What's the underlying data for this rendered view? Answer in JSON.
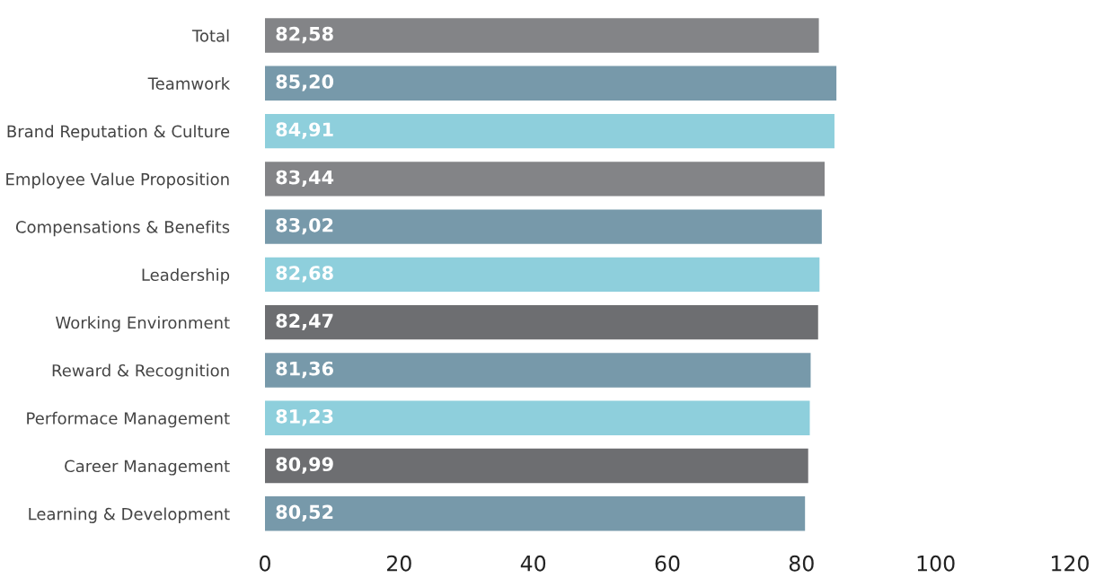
{
  "chart_data": {
    "type": "bar",
    "orientation": "horizontal",
    "categories": [
      "Total",
      "Teamwork",
      "Brand Reputation & Culture",
      "Employee Value Proposition",
      "Compensations & Benefits",
      "Leadership",
      "Working Environment",
      "Reward & Recognition",
      "Performace Management",
      "Career Management",
      "Learning & Development"
    ],
    "values": [
      82.58,
      85.2,
      84.91,
      83.44,
      83.02,
      82.68,
      82.47,
      81.36,
      81.23,
      80.99,
      80.52
    ],
    "value_labels": [
      "82,58",
      "85,20",
      "84,91",
      "83,44",
      "83,02",
      "82,68",
      "82,47",
      "81,36",
      "81,23",
      "80,99",
      "80,52"
    ],
    "colors": [
      "#838487",
      "#7799aa",
      "#8ecfdc",
      "#838487",
      "#7799aa",
      "#8ecfdc",
      "#6d6e71",
      "#7799aa",
      "#8ecfdc",
      "#6d6e71",
      "#7799aa"
    ],
    "xlim": [
      0,
      120
    ],
    "xticks": [
      0,
      20,
      40,
      60,
      80,
      100,
      120
    ],
    "grid": false,
    "legend": false
  }
}
